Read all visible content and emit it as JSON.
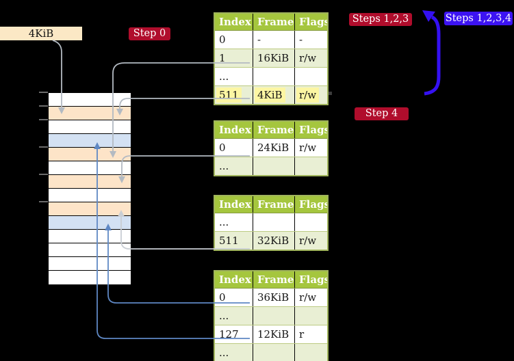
{
  "labels": {
    "frame_size": "4KiB"
  },
  "badges": {
    "step0": "Step 0",
    "steps123": "Steps 1,2,3",
    "steps1234": "Steps 1,2,3,4",
    "step4": "Step 4"
  },
  "memory": {
    "rows": [
      "white",
      "orange",
      "white",
      "blue",
      "orange",
      "white",
      "orange",
      "white",
      "orange",
      "blue",
      "white",
      "white",
      "white",
      "white"
    ],
    "tick_rows": [
      0,
      1,
      2,
      4,
      6,
      8
    ]
  },
  "tables": [
    {
      "name": "page-table-step0",
      "headers": [
        "Index",
        "Frame",
        "Flags"
      ],
      "rows": [
        {
          "index": "0",
          "frame": "-",
          "flags": "-",
          "shaded": false,
          "highlight": false
        },
        {
          "index": "1",
          "frame": "16KiB",
          "flags": "r/w",
          "shaded": true,
          "highlight": false
        },
        {
          "index": "...",
          "frame": "",
          "flags": "",
          "shaded": false,
          "highlight": false
        },
        {
          "index": "511",
          "frame": "4KiB",
          "flags": "r/w",
          "shaded": true,
          "highlight": true
        }
      ]
    },
    {
      "name": "page-table-a",
      "headers": [
        "Index",
        "Frame",
        "Flags"
      ],
      "rows": [
        {
          "index": "0",
          "frame": "24KiB",
          "flags": "r/w",
          "shaded": false,
          "highlight": false
        },
        {
          "index": "...",
          "frame": "",
          "flags": "",
          "shaded": true,
          "highlight": false
        }
      ]
    },
    {
      "name": "page-table-b",
      "headers": [
        "Index",
        "Frame",
        "Flags"
      ],
      "rows": [
        {
          "index": "...",
          "frame": "",
          "flags": "",
          "shaded": false,
          "highlight": false
        },
        {
          "index": "511",
          "frame": "32KiB",
          "flags": "r/w",
          "shaded": true,
          "highlight": false
        }
      ]
    },
    {
      "name": "page-table-step4",
      "headers": [
        "Index",
        "Frame",
        "Flags"
      ],
      "rows": [
        {
          "index": "0",
          "frame": "36KiB",
          "flags": "r/w",
          "shaded": false,
          "highlight": false
        },
        {
          "index": "...",
          "frame": "",
          "flags": "",
          "shaded": true,
          "highlight": false
        },
        {
          "index": "127",
          "frame": "12KiB",
          "flags": "r",
          "shaded": false,
          "highlight": false
        },
        {
          "index": "...",
          "frame": "",
          "flags": "",
          "shaded": true,
          "highlight": false
        }
      ]
    }
  ],
  "colors": {
    "header_green": "#a5c63e",
    "row_shade": "#e9efd4",
    "table_border": "#a0b45c",
    "row_sep": "#bccb82",
    "highlight_yellow": "#fcf6a3",
    "badge_red": "#b00d2c",
    "badge_blue": "#3c13f2",
    "big_arrow_blue": "#3511f2",
    "cream": "#fbe8c5",
    "frame_orange": "#fde4c8",
    "frame_blue": "#d3e1f3",
    "arrow_gray": "#b3bac2",
    "arrow_light": "#c9ced4",
    "arrow_blue": "#5f88c4",
    "tick_gray": "#6c6c6c"
  }
}
